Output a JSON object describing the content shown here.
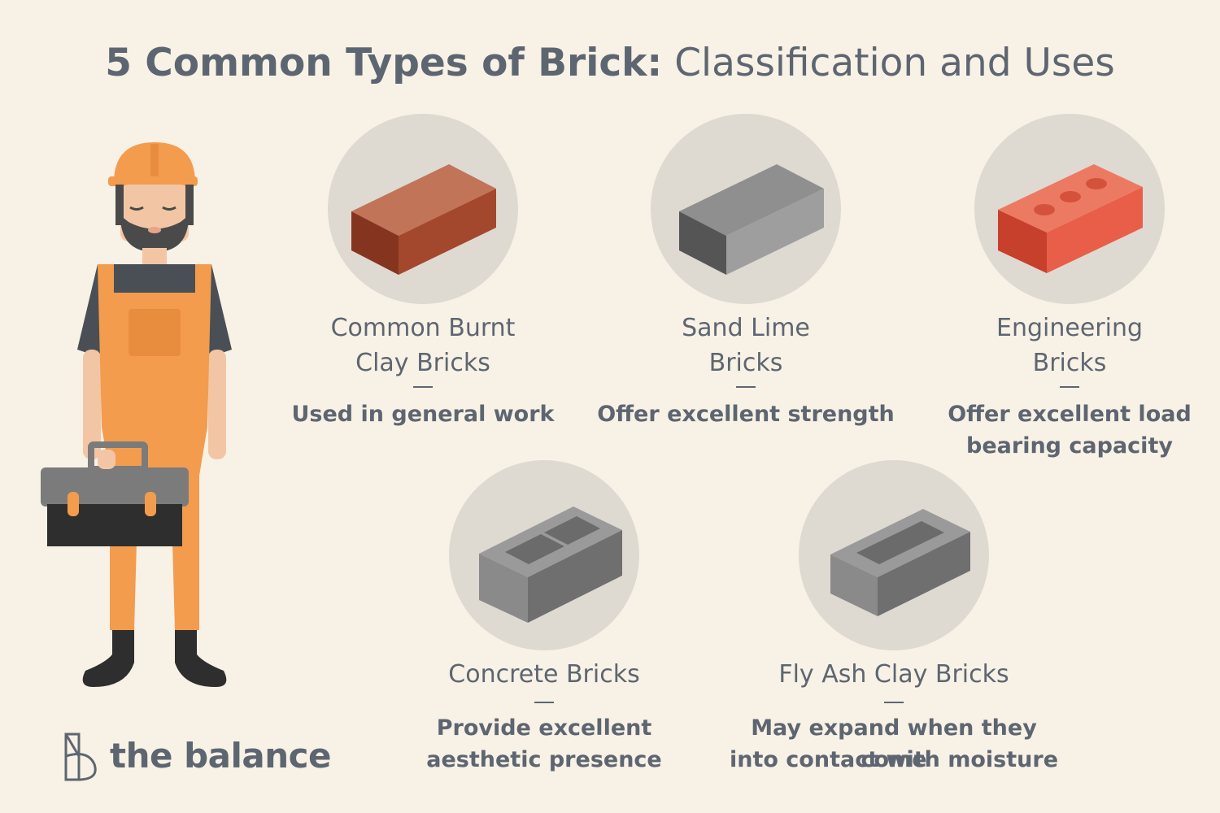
{
  "title": {
    "bold": "5 Common Types of Brick:",
    "light": "Classification and Uses"
  },
  "bricks": [
    {
      "name_line1": "Common Burnt",
      "name_line2": "Clay Bricks",
      "use_line1": "Used in general work",
      "use_line2": "",
      "icon": "clay-brick-icon",
      "colors": {
        "top": "#c17458",
        "left": "#85351f",
        "right": "#a4482d"
      }
    },
    {
      "name_line1": "Sand Lime",
      "name_line2": "Bricks",
      "use_line1": "Offer excellent strength",
      "use_line2": "",
      "icon": "sand-lime-brick-icon",
      "colors": {
        "top": "#8f8f8f",
        "left": "#555555",
        "right": "#9e9e9e"
      }
    },
    {
      "name_line1": "Engineering",
      "name_line2": "Bricks",
      "use_line1": "Offer excellent load",
      "use_line2": "bearing capacity",
      "icon": "engineering-brick-icon",
      "colors": {
        "top": "#ec7a63",
        "left": "#c6402c",
        "right": "#e85e48"
      }
    },
    {
      "name_line1": "Concrete Bricks",
      "name_line2": "",
      "use_line1": "Provide excellent",
      "use_line2": "aesthetic presence",
      "icon": "concrete-block-icon",
      "colors": {
        "top": "#9a9a9a",
        "left": "#8a8a8a",
        "right": "#6f6f6f"
      }
    },
    {
      "name_line1": "Fly Ash Clay Bricks",
      "name_line2": "",
      "use_line1": "May expand when they come",
      "use_line2": "into contact with moisture",
      "icon": "fly-ash-brick-icon",
      "colors": {
        "top": "#9a9a9a",
        "left": "#8a8a8a",
        "right": "#6f6f6f"
      }
    }
  ],
  "logo": {
    "text": "the balance"
  },
  "colors": {
    "background": "#f8f1e6",
    "text": "#5d6670",
    "circle": "#dedad2",
    "orange": "#f39c4e"
  }
}
